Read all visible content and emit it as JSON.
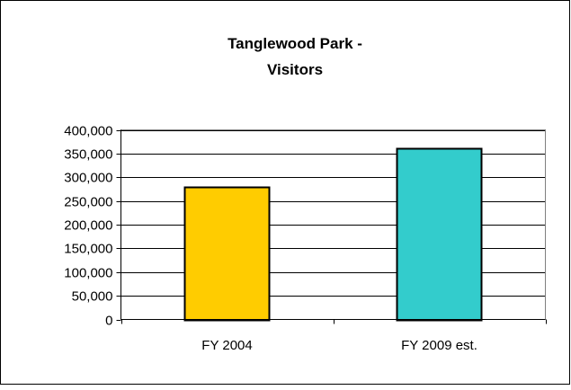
{
  "chart_data": {
    "type": "bar",
    "title_lines": [
      "Tanglewood Park -",
      "Visitors"
    ],
    "categories": [
      "FY 2004",
      "FY 2009 est."
    ],
    "values": [
      280000,
      362000
    ],
    "ylim": [
      0,
      400000
    ],
    "y_ticks": [
      0,
      50000,
      100000,
      150000,
      200000,
      250000,
      300000,
      350000,
      400000
    ],
    "y_tick_labels": [
      "0",
      "50,000",
      "100,000",
      "150,000",
      "200,000",
      "250,000",
      "300,000",
      "350,000",
      "400,000"
    ],
    "grid": true,
    "legend": "none",
    "bar_colors": [
      "#FFCC00",
      "#33CCCC"
    ],
    "plot_background": "#FFFFFF",
    "frame_color": "#000000"
  }
}
